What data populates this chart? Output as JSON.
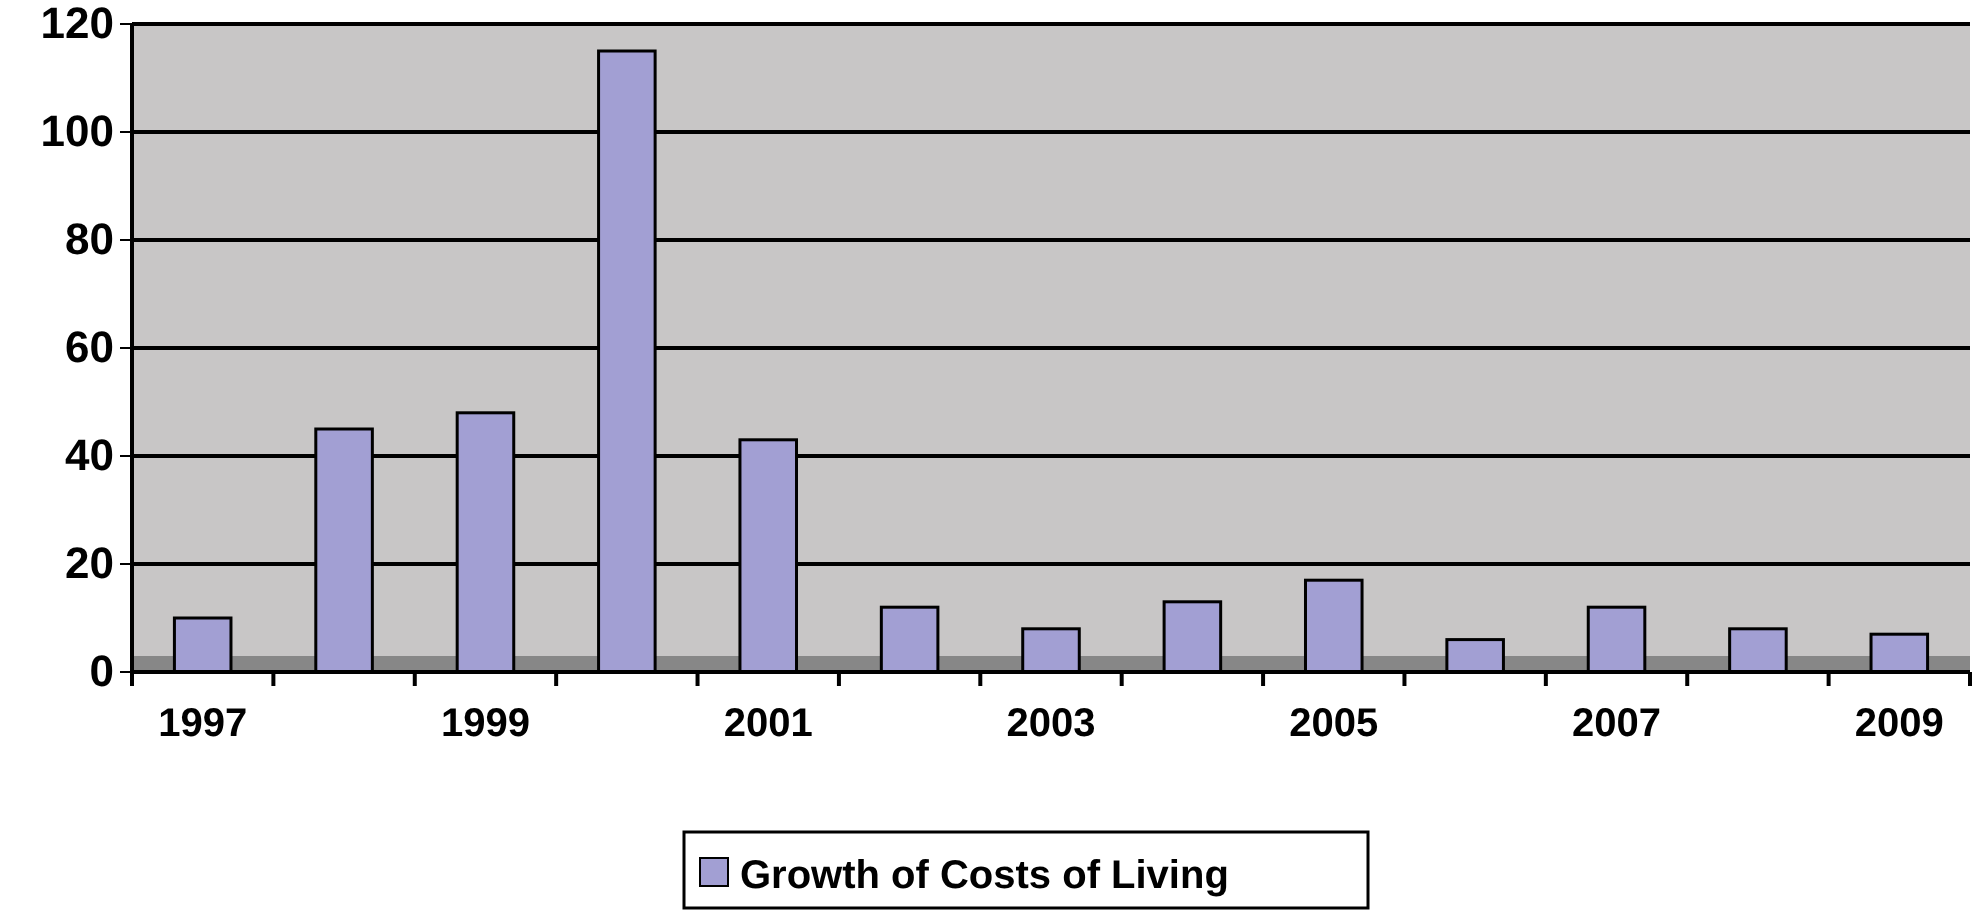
{
  "chart_data": {
    "type": "bar",
    "categories": [
      "1997",
      null,
      "1999",
      null,
      "2001",
      null,
      "2003",
      null,
      "2005",
      null,
      "2007",
      null,
      "2009"
    ],
    "series": [
      {
        "name": "Growth of Costs of Living",
        "color": "#a29fd3",
        "values": [
          10,
          45,
          48,
          115,
          43,
          12,
          8,
          13,
          17,
          6,
          12,
          8,
          7
        ]
      }
    ],
    "ylim": [
      0,
      120
    ],
    "yticks": [
      0,
      20,
      40,
      60,
      80,
      100,
      120
    ],
    "grid": "y",
    "legend": "bottom"
  }
}
